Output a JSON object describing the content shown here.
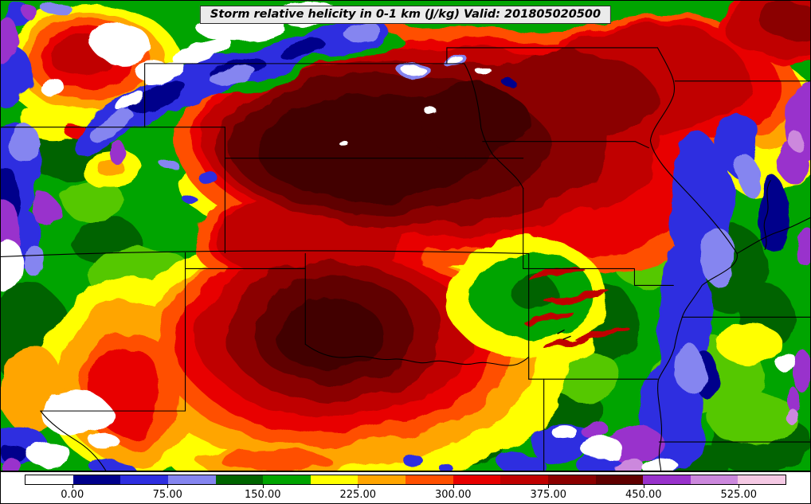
{
  "title": {
    "text": "Storm relative helicity in 0-1 km (J/kg) Valid: 201805020500"
  },
  "colorbar": {
    "ticks": [
      "0.00",
      "75.00",
      "150.00",
      "225.00",
      "300.00",
      "375.00",
      "450.00",
      "525.00"
    ],
    "colors": [
      "#ffffff",
      "#00008b",
      "#2e2ee0",
      "#8585f0",
      "#006400",
      "#00a400",
      "#ffff00",
      "#ffa500",
      "#ff5000",
      "#e80000",
      "#c00000",
      "#8b0000",
      "#600000",
      "#9932cc",
      "#cc88dd",
      "#f5c9e4"
    ]
  },
  "chart_data": {
    "type": "heatmap",
    "title": "Storm relative helicity in 0-1 km (J/kg) Valid: 201805020500",
    "field": "Storm relative helicity in 0-1 km",
    "units": "J/kg",
    "valid": "201805020500",
    "colorbar_levels": [
      0,
      75,
      150,
      225,
      300,
      375,
      450,
      525
    ],
    "colorbar_estimated_range": [
      -37.5,
      562.5
    ],
    "legend_position": "bottom",
    "notes": "Filled-contour helicity field over central US state map; two broad maxima (>375 J/kg, dark maroon) north-center and south-center, surrounded by red/orange/yellow rings, green mid values, blue/purple/white low values at map edges."
  }
}
